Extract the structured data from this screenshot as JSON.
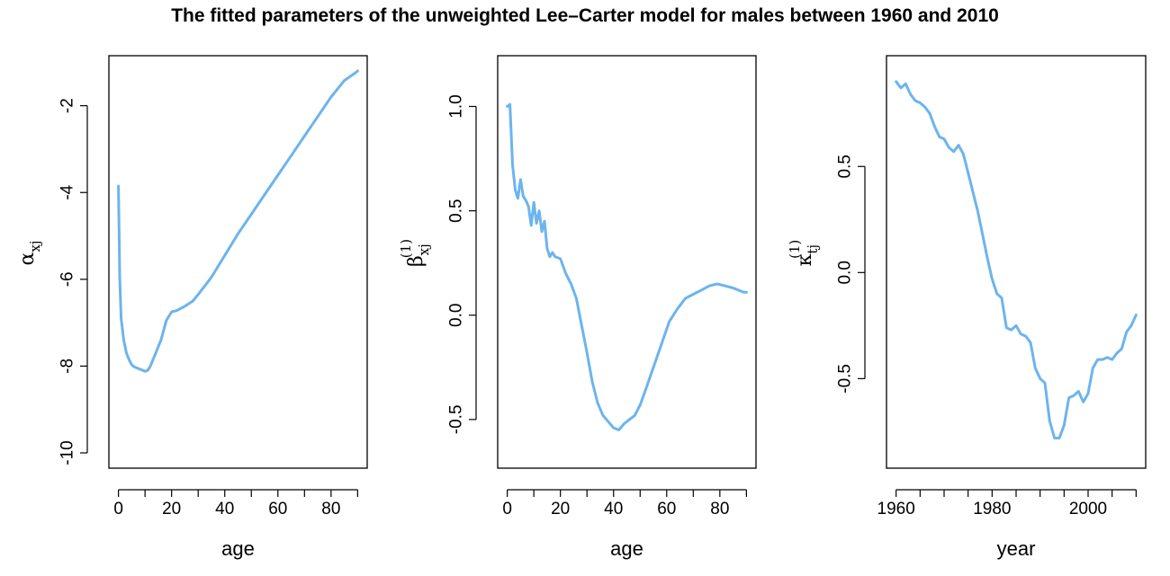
{
  "title": "The fitted parameters of the unweighted Lee–Carter model for males between 1960 and 2010",
  "line_color": "#6CB4EE",
  "chart_data": [
    {
      "type": "line",
      "xlabel": "age",
      "ylabel": {
        "symbol": "α",
        "sub": "xj",
        "sup": ""
      },
      "xlim": [
        0,
        90
      ],
      "ylim": [
        -10,
        -1.2
      ],
      "xticks": [
        0,
        20,
        40,
        60,
        80
      ],
      "xtick_labels": [
        "0",
        "20",
        "40",
        "60",
        "80"
      ],
      "yticks": [
        -10,
        -8,
        -6,
        -4,
        -2
      ],
      "ytick_labels": [
        "-10",
        "-8",
        "-6",
        "-4",
        "-2"
      ],
      "series": [
        {
          "x": [
            0,
            0.5,
            1,
            2,
            3,
            4,
            5,
            6,
            8,
            10,
            11,
            12,
            14,
            16,
            18,
            20,
            22,
            25,
            28,
            30,
            35,
            40,
            45,
            50,
            55,
            60,
            65,
            70,
            75,
            80,
            85,
            89,
            90
          ],
          "y": [
            -3.85,
            -6.0,
            -6.9,
            -7.4,
            -7.7,
            -7.85,
            -7.97,
            -8.02,
            -8.07,
            -8.12,
            -8.1,
            -8.0,
            -7.7,
            -7.4,
            -6.95,
            -6.75,
            -6.72,
            -6.62,
            -6.5,
            -6.35,
            -5.95,
            -5.45,
            -4.95,
            -4.5,
            -4.05,
            -3.6,
            -3.15,
            -2.7,
            -2.25,
            -1.8,
            -1.42,
            -1.25,
            -1.2
          ]
        }
      ]
    },
    {
      "type": "line",
      "xlabel": "age",
      "ylabel": {
        "symbol": "β",
        "sub": "xj",
        "sup": "(1)"
      },
      "xlim": [
        0,
        90
      ],
      "ylim": [
        -0.66,
        1.17
      ],
      "xticks": [
        0,
        20,
        40,
        60,
        80
      ],
      "xtick_labels": [
        "0",
        "20",
        "40",
        "60",
        "80"
      ],
      "yticks": [
        -0.5,
        0,
        0.5,
        1
      ],
      "ytick_labels": [
        "-0.5",
        "0.0",
        "0.5",
        "1.0"
      ],
      "series": [
        {
          "x": [
            0,
            1,
            2,
            3,
            4,
            5,
            6,
            7,
            8,
            9,
            10,
            11,
            12,
            13,
            14,
            15,
            16,
            17,
            18,
            20,
            22,
            24,
            26,
            28,
            30,
            32,
            34,
            36,
            38,
            40,
            42,
            44,
            46,
            48,
            50,
            52,
            55,
            58,
            61,
            64,
            67,
            70,
            73,
            76,
            79,
            82,
            85,
            87,
            89,
            90
          ],
          "y": [
            1.0,
            1.01,
            0.72,
            0.6,
            0.56,
            0.65,
            0.57,
            0.55,
            0.52,
            0.43,
            0.54,
            0.44,
            0.5,
            0.4,
            0.45,
            0.32,
            0.28,
            0.3,
            0.28,
            0.27,
            0.2,
            0.15,
            0.08,
            -0.05,
            -0.18,
            -0.32,
            -0.42,
            -0.48,
            -0.51,
            -0.54,
            -0.55,
            -0.52,
            -0.5,
            -0.48,
            -0.43,
            -0.36,
            -0.25,
            -0.14,
            -0.03,
            0.03,
            0.08,
            0.1,
            0.12,
            0.14,
            0.15,
            0.14,
            0.13,
            0.12,
            0.11,
            0.11
          ]
        }
      ]
    },
    {
      "type": "line",
      "xlabel": "year",
      "ylabel": {
        "symbol": "κ",
        "sub": "tj",
        "sup": "(1)"
      },
      "xlim": [
        1960,
        2010
      ],
      "ylim": [
        -0.85,
        0.95
      ],
      "xticks": [
        1960,
        1980,
        2000
      ],
      "xtick_labels": [
        "1960",
        "1980",
        "2000"
      ],
      "yticks": [
        -0.5,
        0,
        0.5
      ],
      "ytick_labels": [
        "-0.5",
        "0.0",
        "0.5"
      ],
      "series": [
        {
          "x": [
            1960,
            1961,
            1962,
            1963,
            1964,
            1965,
            1966,
            1967,
            1968,
            1969,
            1970,
            1971,
            1972,
            1973,
            1974,
            1975,
            1976,
            1977,
            1978,
            1979,
            1980,
            1981,
            1982,
            1983,
            1984,
            1985,
            1986,
            1987,
            1988,
            1989,
            1990,
            1991,
            1992,
            1993,
            1994,
            1995,
            1996,
            1997,
            1998,
            1999,
            2000,
            2001,
            2002,
            2003,
            2004,
            2005,
            2006,
            2007,
            2008,
            2009,
            2010
          ],
          "y": [
            0.9,
            0.87,
            0.89,
            0.84,
            0.81,
            0.8,
            0.78,
            0.75,
            0.69,
            0.64,
            0.63,
            0.59,
            0.57,
            0.6,
            0.56,
            0.47,
            0.38,
            0.29,
            0.18,
            0.07,
            -0.03,
            -0.1,
            -0.12,
            -0.26,
            -0.27,
            -0.25,
            -0.29,
            -0.3,
            -0.33,
            -0.45,
            -0.5,
            -0.52,
            -0.7,
            -0.78,
            -0.78,
            -0.72,
            -0.59,
            -0.58,
            -0.56,
            -0.61,
            -0.57,
            -0.45,
            -0.41,
            -0.41,
            -0.4,
            -0.41,
            -0.38,
            -0.36,
            -0.28,
            -0.25,
            -0.2
          ]
        }
      ]
    }
  ]
}
